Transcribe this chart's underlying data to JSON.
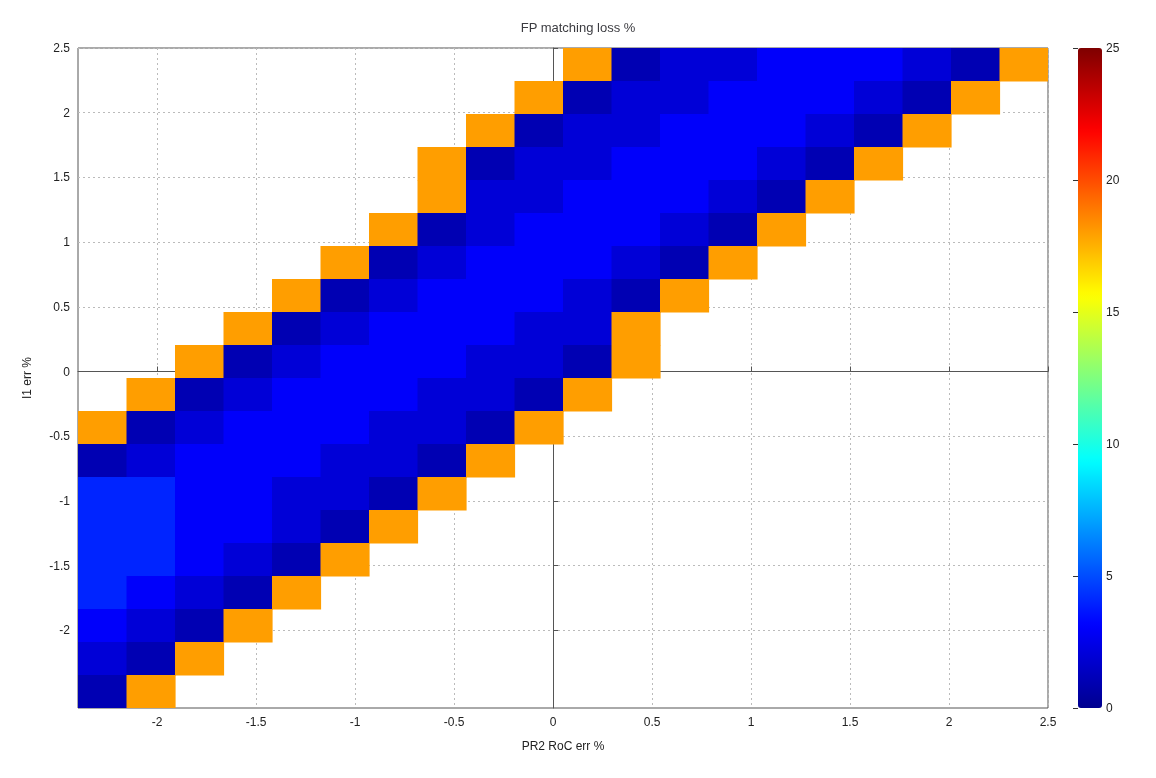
{
  "chart_data": {
    "type": "heatmap",
    "title": "FP matching loss %",
    "xlabel": "PR2 RoC err %",
    "ylabel": "I1 err %",
    "xlim": [
      -2.4,
      2.5
    ],
    "ylim": [
      -2.6,
      2.5
    ],
    "xticks": [
      -2,
      -1.5,
      -1,
      -0.5,
      0,
      0.5,
      1,
      1.5,
      2,
      2.5
    ],
    "yticks": [
      -2,
      -1.5,
      -1,
      -0.5,
      0,
      0.5,
      1,
      1.5,
      2,
      2.5
    ],
    "clim": [
      0,
      25
    ],
    "cticks": [
      0,
      5,
      10,
      15,
      20,
      25
    ],
    "grid": true,
    "cells": [
      [
        null,
        null,
        null,
        null,
        null,
        null,
        null,
        null,
        null,
        null,
        18,
        1,
        2,
        2,
        3,
        3,
        3,
        2,
        1,
        18
      ],
      [
        null,
        null,
        null,
        null,
        null,
        null,
        null,
        null,
        null,
        18,
        1,
        2,
        2,
        3,
        3,
        3,
        2,
        1,
        18,
        null
      ],
      [
        null,
        null,
        null,
        null,
        null,
        null,
        null,
        null,
        18,
        1,
        2,
        2,
        3,
        3,
        3,
        2,
        1,
        18,
        null,
        null
      ],
      [
        null,
        null,
        null,
        null,
        null,
        null,
        null,
        18,
        1,
        2,
        2,
        3,
        3,
        3,
        2,
        1,
        18,
        null,
        null,
        null
      ],
      [
        null,
        null,
        null,
        null,
        null,
        null,
        null,
        18,
        2,
        2,
        3,
        3,
        3,
        2,
        1,
        18,
        null,
        null,
        null,
        null
      ],
      [
        null,
        null,
        null,
        null,
        null,
        null,
        18,
        1,
        2,
        3,
        3,
        3,
        2,
        1,
        18,
        null,
        null,
        null,
        null,
        null
      ],
      [
        null,
        null,
        null,
        null,
        null,
        18,
        1,
        2,
        3,
        3,
        3,
        2,
        1,
        18,
        null,
        null,
        null,
        null,
        null,
        null
      ],
      [
        null,
        null,
        null,
        null,
        18,
        1,
        2,
        3,
        3,
        3,
        2,
        1,
        18,
        null,
        null,
        null,
        null,
        null,
        null,
        null
      ],
      [
        null,
        null,
        null,
        18,
        1,
        2,
        3,
        3,
        3,
        2,
        2,
        18,
        null,
        null,
        null,
        null,
        null,
        null,
        null,
        null
      ],
      [
        null,
        null,
        18,
        1,
        2,
        3,
        3,
        3,
        2,
        2,
        1,
        18,
        null,
        null,
        null,
        null,
        null,
        null,
        null,
        null
      ],
      [
        null,
        18,
        1,
        2,
        3,
        3,
        3,
        2,
        2,
        1,
        18,
        null,
        null,
        null,
        null,
        null,
        null,
        null,
        null,
        null
      ],
      [
        18,
        1,
        2,
        3,
        3,
        3,
        2,
        2,
        1,
        18,
        null,
        null,
        null,
        null,
        null,
        null,
        null,
        null,
        null,
        null
      ],
      [
        1,
        2,
        3,
        3,
        3,
        2,
        2,
        1,
        18,
        null,
        null,
        null,
        null,
        null,
        null,
        null,
        null,
        null,
        null,
        null
      ],
      [
        4,
        4,
        3,
        3,
        2,
        2,
        1,
        18,
        null,
        null,
        null,
        null,
        null,
        null,
        null,
        null,
        null,
        null,
        null,
        null
      ],
      [
        4,
        4,
        3,
        3,
        2,
        1,
        18,
        null,
        null,
        null,
        null,
        null,
        null,
        null,
        null,
        null,
        null,
        null,
        null,
        null
      ],
      [
        4,
        4,
        3,
        2,
        1,
        18,
        null,
        null,
        null,
        null,
        null,
        null,
        null,
        null,
        null,
        null,
        null,
        null,
        null,
        null
      ],
      [
        4,
        3,
        2,
        1,
        18,
        null,
        null,
        null,
        null,
        null,
        null,
        null,
        null,
        null,
        null,
        null,
        null,
        null,
        null,
        null
      ],
      [
        3,
        2,
        1,
        18,
        null,
        null,
        null,
        null,
        null,
        null,
        null,
        null,
        null,
        null,
        null,
        null,
        null,
        null,
        null,
        null
      ],
      [
        2,
        1,
        18,
        null,
        null,
        null,
        null,
        null,
        null,
        null,
        null,
        null,
        null,
        null,
        null,
        null,
        null,
        null,
        null,
        null
      ],
      [
        1,
        18,
        null,
        null,
        null,
        null,
        null,
        null,
        null,
        null,
        null,
        null,
        null,
        null,
        null,
        null,
        null,
        null,
        null,
        null
      ]
    ]
  }
}
